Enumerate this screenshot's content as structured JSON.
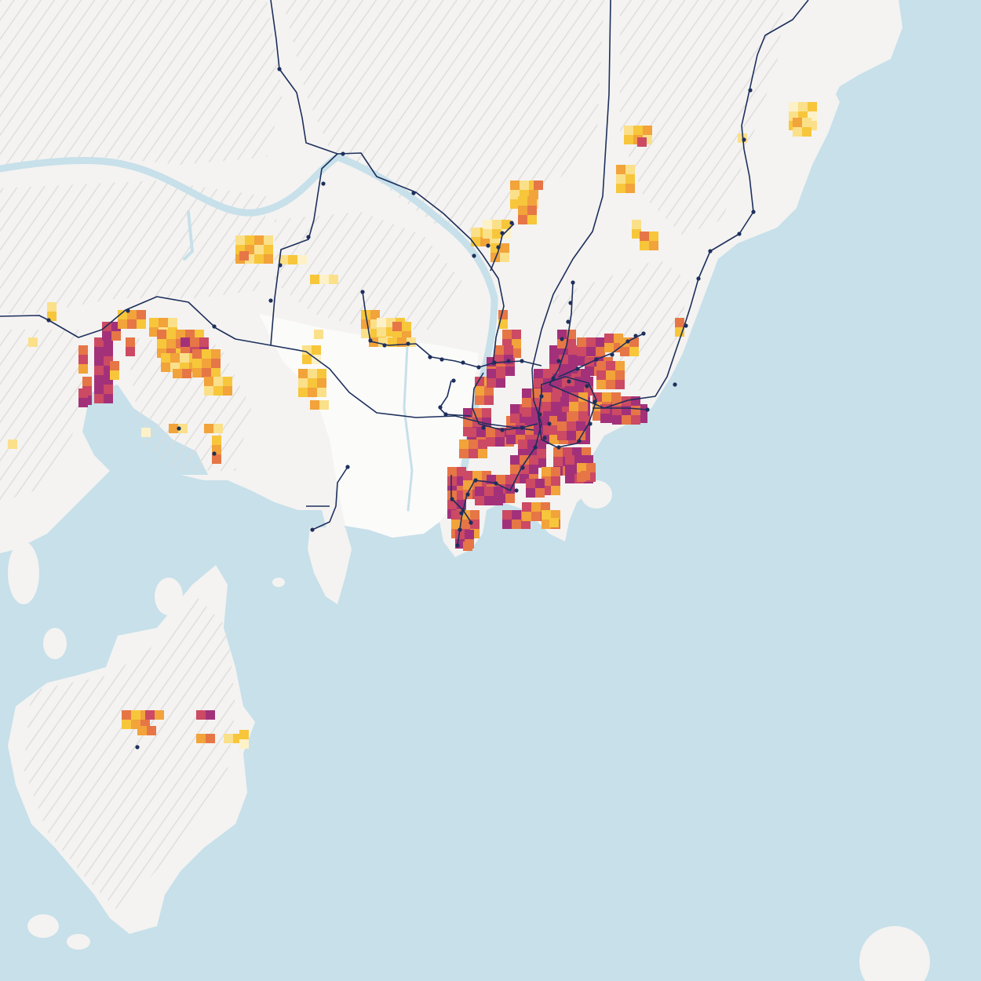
{
  "map": {
    "colors": {
      "sea": "#c7e0ea",
      "land": "#f4f3f1",
      "lowland": "#fbfbfa",
      "hill_shade": "#d6d6d4",
      "river": "#c7e0ea",
      "rail": "#1d2f5c",
      "station": "#1d2f5c",
      "density_scale": [
        "#fdf1c8",
        "#fbe08a",
        "#f7c63b",
        "#f2a33a",
        "#e67646",
        "#cc4a63",
        "#a3317a"
      ]
    },
    "legend": "none",
    "labels": "none"
  }
}
